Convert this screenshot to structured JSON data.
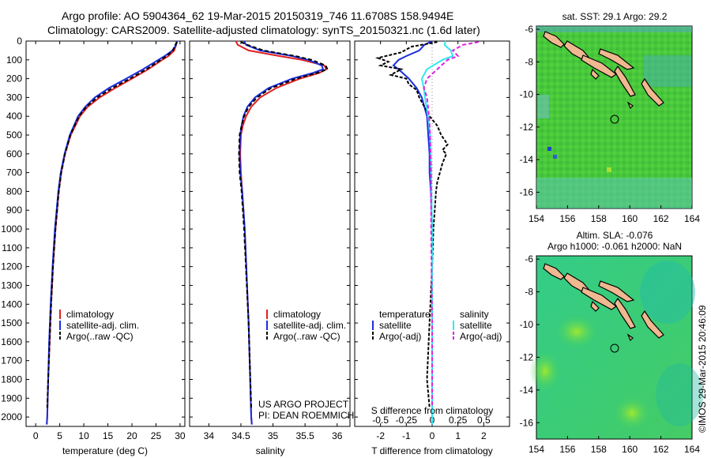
{
  "title": {
    "line1": "Argo profile: AO 5904364_62 19-Mar-2015 20150319_746 11.6708S 158.9494E",
    "line2": "Climatology: CARS2009. Satellite-adjusted climatology: synTS_20150321.nc (1.6d later)"
  },
  "colors": {
    "clim": "#e02020",
    "sat": "#1a2ee0",
    "argo": "#000000",
    "sal_sat": "#30e8f0",
    "sal_argo": "#e020e0"
  },
  "depth_axis": {
    "ylim": [
      0,
      2050
    ],
    "ticks": [
      0,
      100,
      200,
      300,
      400,
      500,
      600,
      700,
      800,
      900,
      1000,
      1100,
      1200,
      1300,
      1400,
      1500,
      1600,
      1700,
      1800,
      1900,
      2000
    ]
  },
  "chart_data": [
    {
      "type": "line",
      "id": "temperature",
      "xlabel": "temperature (deg C)",
      "xlim": [
        -2,
        31
      ],
      "xticks": [
        0,
        5,
        10,
        15,
        20,
        25,
        30
      ],
      "ylabel": "depth",
      "legend": [
        "climatology",
        "satellite-adj. clim.",
        "Argo(..raw -QC)"
      ],
      "legend_placement": "lower-center",
      "series": [
        {
          "name": "climatology",
          "depth": [
            0,
            20,
            50,
            80,
            100,
            150,
            200,
            250,
            300,
            350,
            400,
            500,
            600,
            700,
            800,
            1000,
            1200,
            1400,
            1600,
            1800,
            2000,
            2040
          ],
          "values": [
            29.3,
            29.2,
            28.8,
            27.6,
            26.3,
            23.4,
            20.0,
            16.5,
            13.3,
            10.8,
            9.2,
            7.3,
            6.1,
            5.3,
            4.8,
            4.1,
            3.6,
            3.2,
            2.9,
            2.6,
            2.4,
            2.3
          ]
        },
        {
          "name": "satellite-adj. clim.",
          "depth": [
            0,
            20,
            50,
            80,
            100,
            150,
            200,
            250,
            300,
            350,
            400,
            500,
            600,
            700,
            800,
            1000,
            1200,
            1400,
            1600,
            1800,
            2000,
            2040
          ],
          "values": [
            29.3,
            29.2,
            28.4,
            26.8,
            25.5,
            22.3,
            18.8,
            15.2,
            12.3,
            10.3,
            8.8,
            7.1,
            6.0,
            5.2,
            4.7,
            4.0,
            3.5,
            3.1,
            2.8,
            2.6,
            2.4,
            2.3
          ]
        },
        {
          "name": "Argo(..raw -QC)",
          "depth": [
            5,
            20,
            50,
            80,
            100,
            150,
            200,
            250,
            300,
            350,
            400,
            500,
            600,
            700,
            800,
            1000,
            1200,
            1400,
            1600,
            1800,
            1950
          ],
          "values": [
            29.4,
            29.0,
            28.5,
            27.2,
            26.0,
            23.0,
            19.6,
            15.9,
            12.8,
            10.5,
            9.0,
            7.2,
            6.1,
            5.3,
            4.8,
            4.1,
            3.6,
            3.2,
            2.9,
            2.6,
            2.4
          ]
        }
      ]
    },
    {
      "type": "line",
      "id": "salinity",
      "xlabel": "salinity",
      "xlim": [
        33.7,
        36.2
      ],
      "xticks": [
        34,
        34.5,
        35,
        35.5,
        36
      ],
      "legend": [
        "climatology",
        "satellite-adj. clim.",
        "Argo(..raw -QC)"
      ],
      "legend_placement": "lower-center",
      "series": [
        {
          "name": "climatology",
          "depth": [
            0,
            20,
            50,
            80,
            100,
            130,
            150,
            170,
            200,
            250,
            300,
            350,
            400,
            450,
            500,
            600,
            700,
            800,
            1000,
            1500,
            2000,
            2040
          ],
          "values": [
            34.42,
            34.45,
            34.62,
            35.1,
            35.45,
            35.8,
            35.83,
            35.72,
            35.42,
            35.05,
            34.8,
            34.66,
            34.58,
            34.53,
            34.5,
            34.49,
            34.5,
            34.52,
            34.56,
            34.62,
            34.66,
            34.67
          ]
        },
        {
          "name": "satellite-adj. clim.",
          "depth": [
            0,
            20,
            50,
            80,
            100,
            130,
            150,
            170,
            200,
            250,
            300,
            350,
            400,
            450,
            500,
            600,
            700,
            800,
            1000,
            1500,
            2000,
            2040
          ],
          "values": [
            34.55,
            34.58,
            34.8,
            35.3,
            35.55,
            35.76,
            35.78,
            35.62,
            35.3,
            34.93,
            34.72,
            34.6,
            34.54,
            34.51,
            34.49,
            34.48,
            34.49,
            34.52,
            34.56,
            34.62,
            34.66,
            34.67
          ]
        },
        {
          "name": "Argo(..raw -QC)",
          "depth": [
            5,
            20,
            50,
            80,
            100,
            130,
            150,
            170,
            200,
            250,
            300,
            350,
            400,
            450,
            500,
            600,
            700,
            800,
            1000,
            1500,
            1950
          ],
          "values": [
            34.5,
            34.6,
            34.85,
            35.35,
            35.6,
            35.82,
            35.85,
            35.68,
            35.36,
            34.97,
            34.75,
            34.62,
            34.55,
            34.51,
            34.48,
            34.47,
            34.48,
            34.51,
            34.55,
            34.62,
            34.66
          ]
        }
      ]
    },
    {
      "type": "line",
      "id": "differences",
      "xlabel": "T difference from climatology",
      "xlabel_top": "S difference from climatology",
      "xlim": [
        -3,
        3
      ],
      "xticks": [
        -2,
        -1,
        0,
        1,
        2
      ],
      "xticks_top": [
        "-0.5",
        "-0.25",
        "0",
        "0.25",
        "0.5"
      ],
      "xticks_top_values": [
        -0.5,
        -0.25,
        0,
        0.25,
        0.5
      ],
      "legend_temperature": [
        "temperature",
        "satellite",
        "Argo(-adj)"
      ],
      "legend_salinity": [
        "salinity",
        "satellite",
        "Argo(-adj)"
      ],
      "series": [
        {
          "name": "temperature satellite",
          "depth": [
            0,
            20,
            50,
            80,
            100,
            130,
            150,
            200,
            250,
            300,
            400,
            500,
            600,
            700,
            800,
            1000,
            1500,
            2000,
            2040
          ],
          "values": [
            0,
            -0.3,
            -0.5,
            -1.0,
            -1.3,
            -1.5,
            -1.3,
            -0.9,
            -0.6,
            -0.4,
            -0.2,
            -0.15,
            -0.1,
            -0.1,
            -0.05,
            0,
            0,
            0,
            0
          ]
        },
        {
          "name": "temperature Argo(-adj)",
          "depth": [
            5,
            30,
            60,
            90,
            110,
            130,
            150,
            180,
            200,
            230,
            260,
            300,
            350,
            400,
            450,
            500,
            550,
            580,
            600,
            650,
            700,
            750,
            800,
            900,
            1000,
            1200,
            1500,
            1800,
            1950
          ],
          "values": [
            0.2,
            -0.8,
            -1.2,
            -2.1,
            -1.7,
            -2.0,
            -1.2,
            -1.6,
            -1.0,
            -0.9,
            -0.6,
            -0.5,
            -0.3,
            -0.1,
            0.2,
            0.35,
            0.6,
            0.4,
            0.55,
            0.4,
            0.3,
            0.2,
            0.15,
            0.1,
            0.05,
            0,
            -0.1,
            -0.2,
            -0.1
          ]
        },
        {
          "name": "salinity satellite",
          "depth": [
            0,
            20,
            50,
            80,
            100,
            150,
            200,
            250,
            300,
            400,
            500,
            700,
            1000,
            1500,
            2000,
            2040
          ],
          "values": [
            0.13,
            0.12,
            0.18,
            0.2,
            0.1,
            -0.05,
            -0.1,
            -0.08,
            -0.07,
            -0.04,
            -0.02,
            -0.01,
            0,
            0,
            0,
            0
          ]
        },
        {
          "name": "salinity Argo(-adj)",
          "depth": [
            5,
            20,
            50,
            80,
            100,
            150,
            200,
            250,
            300,
            400,
            500,
            700,
            1000,
            1500,
            1950
          ],
          "values": [
            0.45,
            0.3,
            0.2,
            0.25,
            0.15,
            0.05,
            -0.05,
            -0.08,
            -0.05,
            -0.03,
            -0.02,
            -0.01,
            -0.01,
            0,
            0
          ]
        }
      ],
      "annotation": [
        "US ARGO PROJECT",
        "PI: DEAN ROEMMICH"
      ]
    },
    {
      "type": "heatmap",
      "id": "sst_map",
      "title": "sat. SST: 29.1 Argo: 29.2",
      "xlim": [
        154,
        164
      ],
      "ylim": [
        -17,
        -5.8
      ],
      "xticks": [
        154,
        156,
        158,
        160,
        162,
        164
      ],
      "yticks": [
        -6,
        -8,
        -10,
        -12,
        -14,
        -16
      ],
      "profile_location": [
        158.9494,
        -11.6708
      ]
    },
    {
      "type": "heatmap",
      "id": "sla_map",
      "title_line1": "Altim. SLA: -0.076",
      "title_line2": "Argo h1000: -0.061 h2000: NaN",
      "xlim": [
        154,
        164
      ],
      "ylim": [
        -17,
        -5.8
      ],
      "xticks": [
        154,
        156,
        158,
        160,
        162,
        164
      ],
      "yticks": [
        -6,
        -8,
        -10,
        -12,
        -14,
        -16
      ],
      "profile_location": [
        158.9494,
        -11.6708
      ]
    }
  ],
  "credit": "©IMOS 29-Mar-2015 20:46:09"
}
